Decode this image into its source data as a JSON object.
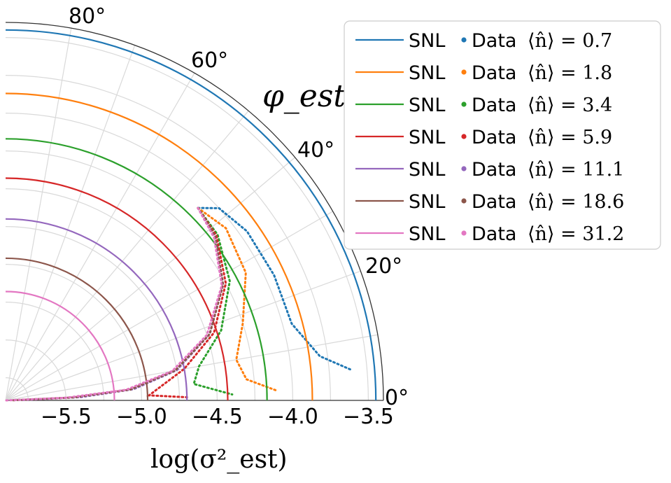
{
  "chart_data": {
    "type": "line",
    "projection": "polar-quarter",
    "title": "φ_est",
    "xlabel": "log(σ²_est)",
    "radial_axis": {
      "range": [
        -5.9,
        -3.4
      ],
      "tick_values": [
        -5.5,
        -5.0,
        -4.5,
        -4.0,
        -3.5
      ],
      "tick_labels": [
        "−5.5",
        "−5.0",
        "−4.5",
        "−4.0",
        "−3.5"
      ]
    },
    "angular_axis": {
      "range_deg": [
        0,
        90
      ],
      "tick_values": [
        0,
        20,
        40,
        60,
        80
      ],
      "tick_labels": [
        "0°",
        "20°",
        "40°",
        "60°",
        "80°"
      ]
    },
    "grid": true,
    "legend_position": "top-right",
    "series": [
      {
        "color": "#1f77b4",
        "mean_n": "0.7",
        "snl_radius": -3.45,
        "data": [
          [
            -4.1,
            45
          ],
          [
            -4.0,
            42
          ],
          [
            -3.95,
            35
          ],
          [
            -3.94,
            25
          ],
          [
            -3.94,
            15
          ],
          [
            -3.8,
            8
          ],
          [
            -3.6,
            5
          ]
        ]
      },
      {
        "color": "#ff7f0e",
        "mean_n": "1.8",
        "snl_radius": -3.87,
        "data": [
          [
            -4.1,
            45
          ],
          [
            -4.05,
            38
          ],
          [
            -4.1,
            28
          ],
          [
            -4.25,
            18
          ],
          [
            -4.35,
            10
          ],
          [
            -4.3,
            5
          ],
          [
            -4.1,
            2
          ]
        ]
      },
      {
        "color": "#2ca02c",
        "mean_n": "3.4",
        "snl_radius": -4.17,
        "data": [
          [
            -4.1,
            45
          ],
          [
            -4.12,
            38
          ],
          [
            -4.22,
            28
          ],
          [
            -4.4,
            18
          ],
          [
            -4.6,
            10
          ],
          [
            -4.65,
            5
          ],
          [
            -4.4,
            1.5
          ]
        ]
      },
      {
        "color": "#d62728",
        "mean_n": "5.9",
        "snl_radius": -4.43,
        "data": [
          [
            -4.1,
            45
          ],
          [
            -4.13,
            38
          ],
          [
            -4.25,
            28
          ],
          [
            -4.45,
            18
          ],
          [
            -4.7,
            10
          ],
          [
            -4.9,
            4
          ],
          [
            -4.95,
            2
          ],
          [
            -4.7,
            1
          ]
        ]
      },
      {
        "color": "#9467bd",
        "mean_n": "11.1",
        "snl_radius": -4.7,
        "data": [
          [
            -4.1,
            45
          ],
          [
            -4.14,
            38
          ],
          [
            -4.27,
            28
          ],
          [
            -4.48,
            18
          ],
          [
            -4.75,
            10
          ],
          [
            -5.05,
            5
          ],
          [
            -5.4,
            2.5
          ],
          [
            -5.8,
            1
          ]
        ]
      },
      {
        "color": "#8c564b",
        "mean_n": "18.6",
        "snl_radius": -4.96,
        "data": [
          [
            -4.1,
            45
          ],
          [
            -4.14,
            38
          ],
          [
            -4.27,
            28
          ],
          [
            -4.48,
            18
          ],
          [
            -4.76,
            10
          ],
          [
            -5.07,
            5
          ],
          [
            -5.45,
            2.5
          ],
          [
            -5.85,
            1
          ]
        ]
      },
      {
        "color": "#e377c2",
        "mean_n": "31.2",
        "snl_radius": -5.18,
        "data": [
          [
            -4.1,
            45
          ],
          [
            -4.15,
            38
          ],
          [
            -4.28,
            28
          ],
          [
            -4.5,
            18
          ],
          [
            -4.78,
            10
          ],
          [
            -5.1,
            5
          ],
          [
            -5.5,
            2.5
          ],
          [
            -5.9,
            1
          ]
        ]
      }
    ],
    "legend": {
      "snl_label": "SNL",
      "data_label": "Data",
      "math_prefix": "⟨n̂⟩ = "
    }
  }
}
